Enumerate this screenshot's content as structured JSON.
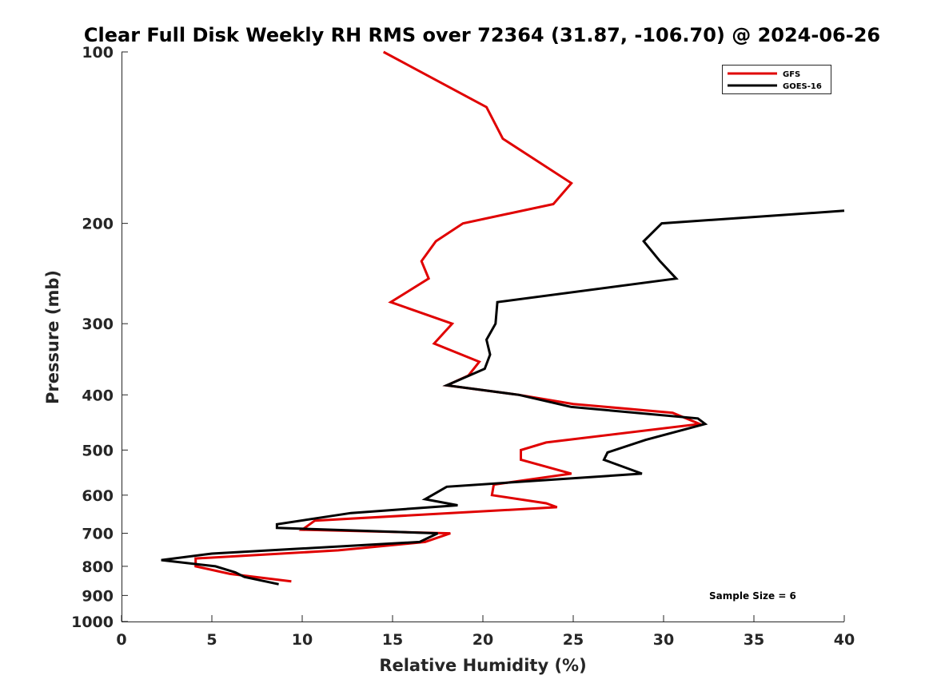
{
  "chart_data": {
    "type": "line",
    "title": "Clear Full Disk Weekly RH RMS over 72364 (31.87, -106.70) @ 2024-06-26",
    "xlabel": "Relative Humidity (%)",
    "ylabel": "Pressure (mb)",
    "xlim": [
      0,
      40
    ],
    "ylim": [
      100,
      1000
    ],
    "y_scale": "log",
    "y_reversed": true,
    "x_ticks": [
      0,
      5,
      10,
      15,
      20,
      25,
      30,
      35,
      40
    ],
    "x_tick_labels": [
      "0",
      "5",
      "10",
      "15",
      "20",
      "25",
      "30",
      "35",
      "40"
    ],
    "y_ticks": [
      100,
      200,
      300,
      400,
      500,
      600,
      700,
      800,
      900,
      1000
    ],
    "y_tick_labels": [
      "100",
      "200",
      "300",
      "400",
      "500",
      "600",
      "700",
      "800",
      "900",
      "1000"
    ],
    "grid": false,
    "legend_position": "top-right",
    "annotation": "Sample Size = 6",
    "series": [
      {
        "name": "GFS",
        "color": "#e00000",
        "points": [
          [
            14.5,
            100
          ],
          [
            20.2,
            125
          ],
          [
            21.1,
            142
          ],
          [
            24.9,
            170
          ],
          [
            23.9,
            185
          ],
          [
            18.9,
            200
          ],
          [
            17.4,
            215
          ],
          [
            16.6,
            233
          ],
          [
            17.0,
            250
          ],
          [
            14.9,
            275
          ],
          [
            18.3,
            300
          ],
          [
            17.3,
            325
          ],
          [
            19.8,
            350
          ],
          [
            19.2,
            370
          ],
          [
            18.0,
            385
          ],
          [
            22.0,
            400
          ],
          [
            25.0,
            415
          ],
          [
            30.5,
            430
          ],
          [
            32.0,
            450
          ],
          [
            23.5,
            485
          ],
          [
            22.1,
            500
          ],
          [
            22.1,
            520
          ],
          [
            24.9,
            550
          ],
          [
            20.6,
            575
          ],
          [
            20.5,
            600
          ],
          [
            23.5,
            620
          ],
          [
            24.1,
            630
          ],
          [
            10.7,
            665
          ],
          [
            10.0,
            690
          ],
          [
            18.2,
            700
          ],
          [
            16.8,
            725
          ],
          [
            12.0,
            750
          ],
          [
            4.1,
            775
          ],
          [
            4.1,
            800
          ],
          [
            6.0,
            825
          ],
          [
            9.4,
            850
          ]
        ]
      },
      {
        "name": "GOES-16",
        "color": "#000000",
        "points": [
          [
            40.0,
            190
          ],
          [
            29.9,
            200
          ],
          [
            28.9,
            215
          ],
          [
            29.8,
            233
          ],
          [
            30.7,
            250
          ],
          [
            20.8,
            275
          ],
          [
            20.7,
            300
          ],
          [
            20.2,
            320
          ],
          [
            20.4,
            340
          ],
          [
            20.1,
            360
          ],
          [
            18.0,
            385
          ],
          [
            22.0,
            400
          ],
          [
            24.9,
            420
          ],
          [
            31.9,
            440
          ],
          [
            32.3,
            450
          ],
          [
            29.0,
            480
          ],
          [
            26.9,
            505
          ],
          [
            26.7,
            520
          ],
          [
            28.8,
            550
          ],
          [
            18.0,
            580
          ],
          [
            16.8,
            610
          ],
          [
            18.6,
            625
          ],
          [
            12.7,
            645
          ],
          [
            8.6,
            675
          ],
          [
            8.6,
            685
          ],
          [
            17.5,
            700
          ],
          [
            16.5,
            725
          ],
          [
            5.0,
            760
          ],
          [
            2.2,
            780
          ],
          [
            5.2,
            800
          ],
          [
            6.3,
            820
          ],
          [
            6.8,
            835
          ],
          [
            8.7,
            860
          ]
        ]
      }
    ]
  }
}
